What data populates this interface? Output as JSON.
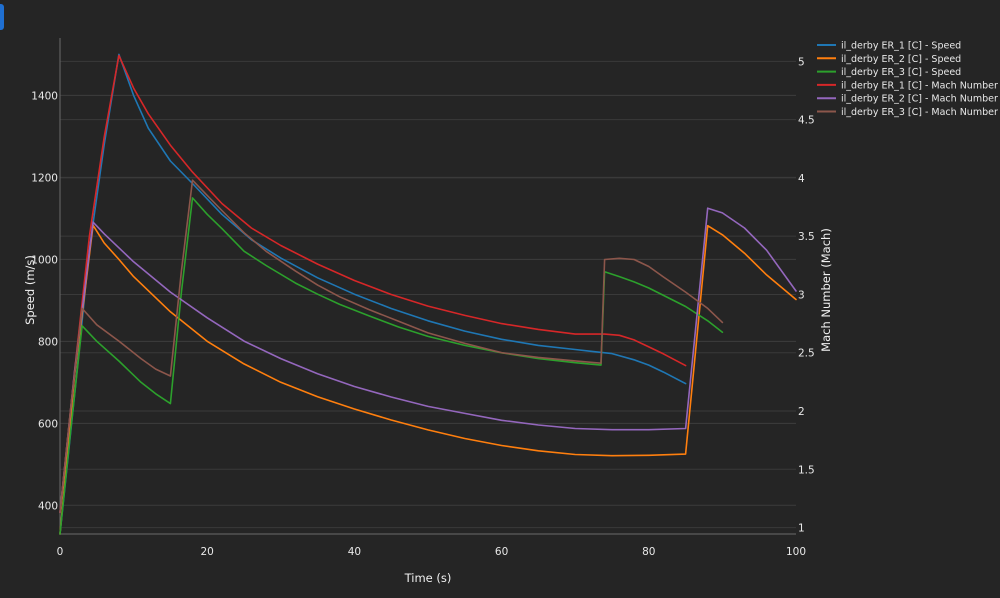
{
  "chart_data": {
    "type": "line",
    "xlabel": "Time (s)",
    "ylabel": "Speed (m/s)",
    "y2label": "Mach Number (Mach)",
    "xlim": [
      0,
      100
    ],
    "ylim": [
      330,
      1540
    ],
    "y2lim": [
      0.945,
      5.2
    ],
    "xticks": [
      0,
      20,
      40,
      60,
      80,
      100
    ],
    "yticks": [
      400,
      600,
      800,
      1000,
      1200,
      1400
    ],
    "y2ticks": [
      1,
      1.5,
      2,
      2.5,
      3,
      3.5,
      4,
      4.5,
      5
    ],
    "grid": true,
    "legend_position": "top-right",
    "series": [
      {
        "name": "il_derby ER_1 [C] - Speed",
        "axis": "left",
        "color": "#1f77b4",
        "x": [
          0,
          2,
          4,
          6,
          8,
          10,
          12,
          15,
          18,
          22,
          26,
          30,
          35,
          40,
          45,
          50,
          55,
          60,
          65,
          70,
          72,
          75,
          78,
          80,
          82,
          85
        ],
        "y": [
          330,
          672,
          1025,
          1280,
          1500,
          1400,
          1320,
          1240,
          1185,
          1110,
          1048,
          1003,
          955,
          915,
          880,
          850,
          825,
          805,
          790,
          780,
          776,
          770,
          755,
          742,
          725,
          697
        ]
      },
      {
        "name": "il_derby ER_2 [C] - Speed",
        "axis": "left",
        "color": "#ff7f0e",
        "x": [
          0,
          2,
          4.5,
          6,
          8,
          10,
          15,
          20,
          25,
          30,
          35,
          40,
          45,
          50,
          55,
          60,
          65,
          70,
          75,
          80,
          85,
          88,
          90,
          93,
          96,
          100
        ],
        "y": [
          330,
          720,
          1083,
          1040,
          1000,
          958,
          872,
          800,
          745,
          700,
          665,
          635,
          608,
          584,
          563,
          546,
          533,
          524,
          521,
          522,
          525,
          1082,
          1060,
          1015,
          962,
          902
        ]
      },
      {
        "name": "il_derby ER_3 [C] - Speed",
        "axis": "left",
        "color": "#2ca02c",
        "x": [
          0,
          1.5,
          3,
          5,
          8,
          11,
          13,
          15,
          16.5,
          18,
          20,
          22,
          25,
          28,
          32,
          35,
          38,
          42,
          46,
          50,
          55,
          60,
          65,
          70,
          73.5,
          74,
          76,
          78,
          80,
          82,
          85,
          88,
          90
        ],
        "y": [
          330,
          590,
          838,
          800,
          752,
          700,
          672,
          648,
          920,
          1150,
          1110,
          1075,
          1020,
          985,
          942,
          915,
          890,
          862,
          835,
          812,
          790,
          772,
          758,
          748,
          742,
          970,
          958,
          945,
          930,
          912,
          885,
          850,
          822
        ]
      },
      {
        "name": "il_derby ER_1 [C] - Mach Number",
        "axis": "right",
        "color": "#d62728",
        "x": [
          0,
          2,
          4,
          6,
          8,
          10,
          12,
          15,
          18,
          22,
          26,
          30,
          35,
          40,
          45,
          50,
          55,
          60,
          65,
          70,
          72,
          74,
          76,
          78,
          80,
          82,
          85
        ],
        "y": [
          1.13,
          2.35,
          3.5,
          4.35,
          5.05,
          4.77,
          4.55,
          4.28,
          4.05,
          3.78,
          3.57,
          3.42,
          3.26,
          3.12,
          3.0,
          2.9,
          2.82,
          2.75,
          2.7,
          2.66,
          2.66,
          2.66,
          2.65,
          2.61,
          2.55,
          2.49,
          2.39
        ]
      },
      {
        "name": "il_derby ER_2 [C] - Mach Number",
        "axis": "right",
        "color": "#9467bd",
        "x": [
          0,
          2,
          4.5,
          6,
          8,
          10,
          15,
          20,
          25,
          30,
          35,
          40,
          45,
          50,
          55,
          60,
          65,
          70,
          75,
          80,
          85,
          88,
          90,
          93,
          96,
          100
        ],
        "y": [
          1.13,
          2.35,
          3.62,
          3.52,
          3.4,
          3.28,
          3.02,
          2.8,
          2.6,
          2.45,
          2.32,
          2.21,
          2.12,
          2.04,
          1.98,
          1.92,
          1.88,
          1.85,
          1.84,
          1.84,
          1.85,
          3.74,
          3.7,
          3.57,
          3.38,
          3.03
        ]
      },
      {
        "name": "il_derby ER_3 [C] - Mach Number",
        "axis": "right",
        "color": "#8c564b",
        "x": [
          0,
          1.5,
          3,
          5,
          8,
          11,
          13,
          15,
          16.5,
          18,
          20,
          22,
          25,
          28,
          32,
          35,
          38,
          42,
          46,
          50,
          55,
          60,
          65,
          70,
          73.5,
          74,
          76,
          78,
          80,
          82,
          85,
          88,
          90
        ],
        "y": [
          1.13,
          2.05,
          2.88,
          2.74,
          2.6,
          2.45,
          2.36,
          2.3,
          3.2,
          3.98,
          3.85,
          3.72,
          3.53,
          3.37,
          3.2,
          3.08,
          2.98,
          2.87,
          2.77,
          2.67,
          2.58,
          2.5,
          2.46,
          2.43,
          2.41,
          3.3,
          3.31,
          3.3,
          3.24,
          3.15,
          3.02,
          2.88,
          2.76
        ]
      }
    ]
  }
}
